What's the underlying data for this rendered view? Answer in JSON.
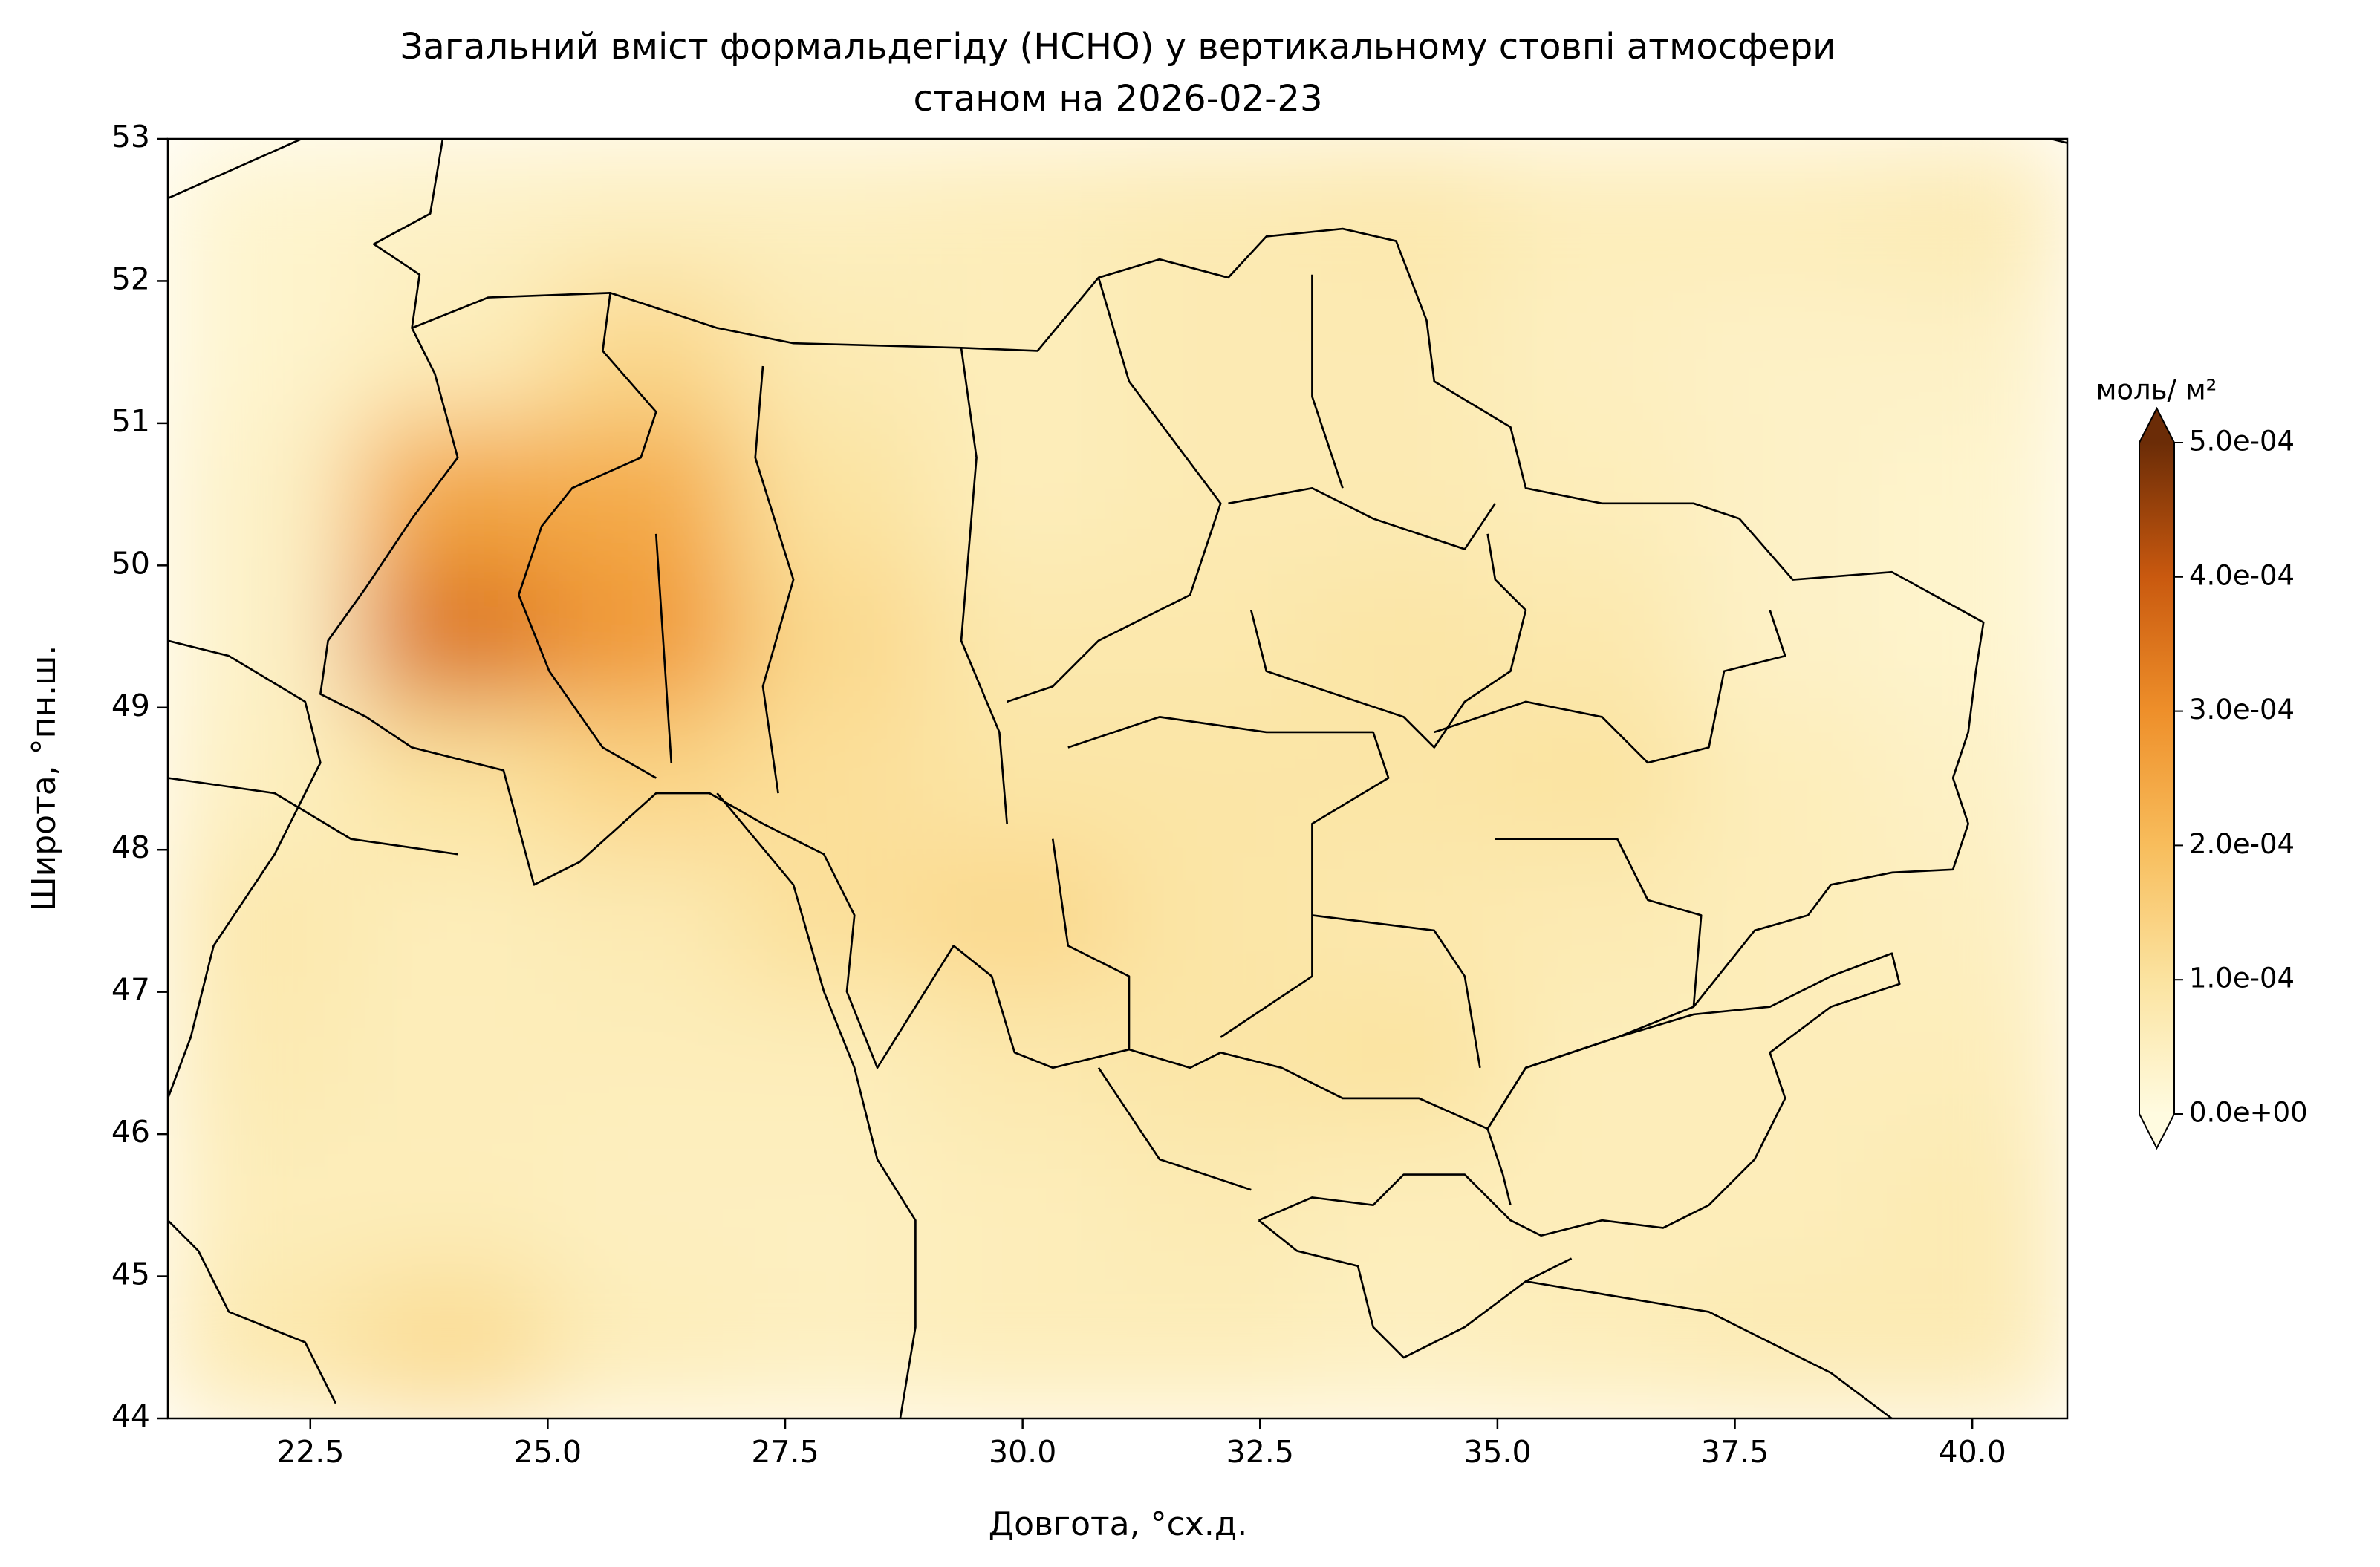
{
  "chart_data": {
    "type": "heatmap",
    "title": [
      "Загальний вміст формальдегіду (HCHO) у вертикальному стовпі атмосфери",
      "станом на 2026-02-23"
    ],
    "x_label": "Довгота, °сх.д.",
    "y_label": "Широта, °пн.ш.",
    "colorbar_label": "моль/ м²",
    "x": [
      21,
      23,
      25,
      27,
      29,
      31,
      33,
      35,
      37,
      39,
      41
    ],
    "y": [
      53,
      52,
      51,
      50,
      49,
      48,
      47,
      46,
      45,
      44
    ],
    "values": [
      [
        3e-05,
        4e-05,
        5e-05,
        5e-05,
        6e-05,
        7e-05,
        8e-05,
        6e-05,
        6e-05,
        7e-05
      ],
      [
        3e-05,
        6e-05,
        0.00013,
        7e-05,
        6e-05,
        7e-05,
        7e-05,
        5e-05,
        4e-05,
        4e-05
      ],
      [
        4e-05,
        0.00025,
        0.00024,
        0.0001,
        6e-05,
        7e-05,
        7e-05,
        6e-05,
        4e-05,
        3e-05
      ],
      [
        4e-05,
        0.00035,
        0.00028,
        0.00013,
        8e-05,
        8e-05,
        9e-05,
        8e-05,
        4e-05,
        3e-05
      ],
      [
        5e-05,
        0.0001,
        0.00014,
        0.00011,
        9e-05,
        9e-05,
        9e-05,
        0.0001,
        6e-05,
        4e-05
      ],
      [
        8e-05,
        6e-05,
        7e-05,
        0.00011,
        0.00013,
        9e-05,
        8e-05,
        7e-05,
        6e-05,
        5e-05
      ],
      [
        7e-05,
        6e-05,
        6e-05,
        6e-05,
        8e-05,
        9e-05,
        0.0001,
        6e-05,
        6e-05,
        6e-05
      ],
      [
        6e-05,
        6e-05,
        5e-05,
        5e-05,
        6e-05,
        7e-05,
        6e-05,
        6e-05,
        6e-05,
        7e-05
      ],
      [
        8e-05,
        0.00012,
        6e-05,
        5e-05,
        6e-05,
        6e-05,
        5e-05,
        6e-05,
        7e-05,
        7e-05
      ]
    ],
    "xlim": [
      21,
      41
    ],
    "ylim": [
      44,
      53
    ],
    "xticks": [
      22.5,
      {
        "value": 25,
        "label": "25.0"
      },
      27.5,
      {
        "value": 30,
        "label": "30.0"
      },
      32.5,
      {
        "value": 35,
        "label": "35.0"
      },
      37.5,
      {
        "value": 40,
        "label": "40.0"
      }
    ],
    "yticks": [
      44,
      45,
      46,
      47,
      48,
      49,
      50,
      51,
      52,
      53
    ],
    "clim": [
      0,
      0.0005
    ],
    "cticks": [
      {
        "value": 0,
        "label": "0.0e+00"
      },
      {
        "value": 0.0001,
        "label": "1.0e-04"
      },
      {
        "value": 0.0002,
        "label": "2.0e-04"
      },
      {
        "value": 0.0003,
        "label": "3.0e-04"
      },
      {
        "value": 0.0004,
        "label": "4.0e-04"
      },
      {
        "value": 0.0005,
        "label": "5.0e-04"
      }
    ],
    "colormap": [
      "#fffbe0",
      "#fbe3a0",
      "#f8bd5c",
      "#ee8f2a",
      "#c9590f",
      "#6b2c07"
    ]
  }
}
